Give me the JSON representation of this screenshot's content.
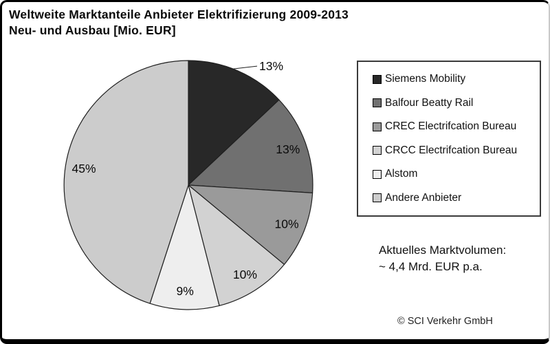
{
  "title": {
    "line1": "Weltweite Marktanteile Anbieter Elektrifizierung 2009-2013",
    "line2": "Neu- und Ausbau [Mio. EUR]"
  },
  "chart_data": {
    "type": "pie",
    "title": "Weltweite Marktanteile Anbieter Elektrifizierung 2009-2013 Neu- und Ausbau [Mio. EUR]",
    "unit": "percent",
    "start_angle_deg": 0,
    "direction": "clockwise",
    "legend_position": "right",
    "total": 100,
    "slices": [
      {
        "label": "Siemens Mobility",
        "value": 13,
        "display": "13%",
        "color": "#282828",
        "label_outside": true
      },
      {
        "label": "Balfour Beatty Rail",
        "value": 13,
        "display": "13%",
        "color": "#707070",
        "label_outside": false
      },
      {
        "label": "CREC Electrifcation Bureau",
        "value": 10,
        "display": "10%",
        "color": "#9a9a9a",
        "label_outside": false
      },
      {
        "label": "CRCC Electrifcation Bureau",
        "value": 10,
        "display": "10%",
        "color": "#d2d2d2",
        "label_outside": false
      },
      {
        "label": "Alstom",
        "value": 9,
        "display": "9%",
        "color": "#eeeeee",
        "label_outside": false
      },
      {
        "label": "Andere Anbieter",
        "value": 45,
        "display": "45%",
        "color": "#cccccc",
        "label_outside": false
      }
    ],
    "outline_color": "#1f1f1f",
    "label_color": "#0a0a0a"
  },
  "annotation": {
    "line1": "Aktuelles Marktvolumen:",
    "line2": "~ 4,4 Mrd. EUR p.a."
  },
  "footer": {
    "copyright": "© SCI Verkehr GmbH"
  }
}
